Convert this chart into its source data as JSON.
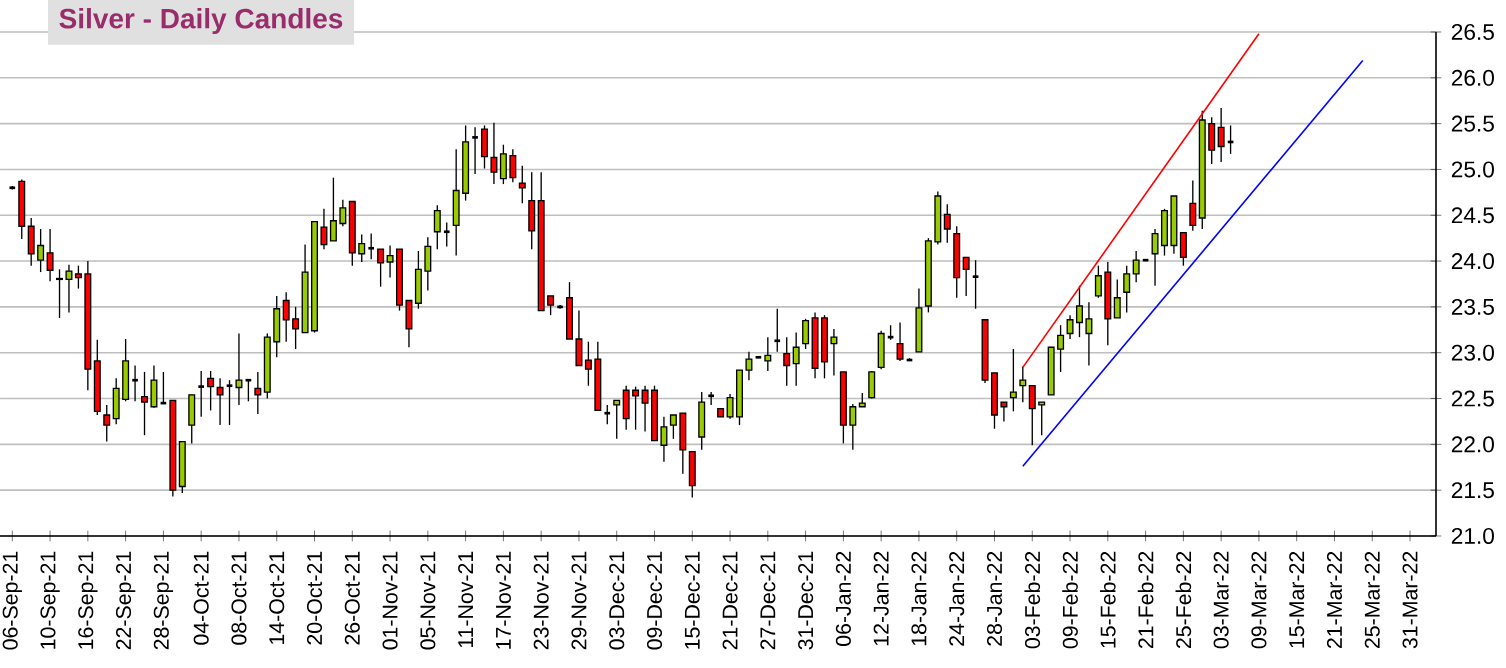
{
  "chart_data": {
    "type": "candlestick",
    "title": "Silver - Daily Candles",
    "categories": [
      "06-Sep-21",
      null,
      null,
      null,
      "10-Sep-21",
      null,
      null,
      null,
      "16-Sep-21",
      null,
      null,
      null,
      "22-Sep-21",
      null,
      null,
      null,
      "28-Sep-21",
      null,
      null,
      null,
      "04-Oct-21",
      null,
      null,
      null,
      "08-Oct-21",
      null,
      null,
      null,
      "14-Oct-21",
      null,
      null,
      null,
      "20-Oct-21",
      null,
      null,
      null,
      "26-Oct-21",
      null,
      null,
      null,
      "01-Nov-21",
      null,
      null,
      null,
      "05-Nov-21",
      null,
      null,
      null,
      "11-Nov-21",
      null,
      null,
      null,
      "17-Nov-21",
      null,
      null,
      null,
      "23-Nov-21",
      null,
      null,
      null,
      "29-Nov-21",
      null,
      null,
      null,
      "03-Dec-21",
      null,
      null,
      null,
      "09-Dec-21",
      null,
      null,
      null,
      "15-Dec-21",
      null,
      null,
      null,
      "21-Dec-21",
      null,
      null,
      null,
      "27-Dec-21",
      null,
      null,
      null,
      "31-Dec-21",
      null,
      null,
      null,
      "06-Jan-22",
      null,
      null,
      null,
      "12-Jan-22",
      null,
      null,
      null,
      "18-Jan-22",
      null,
      null,
      null,
      "24-Jan-22",
      null,
      null,
      null,
      "28-Jan-22",
      null,
      null,
      null,
      "03-Feb-22",
      null,
      null,
      null,
      "09-Feb-22",
      null,
      null,
      null,
      "15-Feb-22",
      null,
      null,
      null,
      "21-Feb-22",
      null,
      null,
      null,
      "25-Feb-22",
      null,
      null,
      null,
      "03-Mar-22",
      null,
      null,
      null,
      "09-Mar-22",
      null,
      null,
      null,
      "15-Mar-22",
      null,
      null,
      null,
      "21-Mar-22",
      null,
      null,
      null,
      "25-Mar-22",
      null,
      null,
      null,
      "31-Mar-22"
    ],
    "ohlc": [
      [
        24.8,
        24.82,
        24.78,
        24.8
      ],
      [
        24.87,
        24.89,
        24.24,
        24.38
      ],
      [
        24.38,
        24.47,
        23.95,
        24.08
      ],
      [
        24.01,
        24.35,
        23.88,
        24.17
      ],
      [
        24.09,
        24.35,
        23.78,
        23.9
      ],
      [
        23.8,
        23.91,
        23.38,
        23.81
      ],
      [
        23.8,
        23.96,
        23.44,
        23.89
      ],
      [
        23.86,
        23.95,
        23.7,
        23.82
      ],
      [
        23.86,
        24.0,
        22.59,
        22.82
      ],
      [
        22.91,
        23.14,
        22.32,
        22.36
      ],
      [
        22.32,
        22.43,
        22.03,
        22.21
      ],
      [
        22.28,
        22.72,
        22.22,
        22.61
      ],
      [
        22.49,
        23.15,
        22.47,
        22.91
      ],
      [
        22.7,
        22.86,
        22.47,
        22.7
      ],
      [
        22.52,
        22.79,
        22.1,
        22.46
      ],
      [
        22.41,
        22.86,
        22.4,
        22.7
      ],
      [
        22.45,
        22.79,
        22.44,
        22.45
      ],
      [
        22.48,
        22.48,
        21.43,
        21.5
      ],
      [
        21.54,
        22.03,
        21.47,
        22.03
      ],
      [
        22.21,
        22.54,
        22.01,
        22.54
      ],
      [
        22.63,
        22.8,
        22.3,
        22.63
      ],
      [
        22.72,
        22.8,
        22.37,
        22.63
      ],
      [
        22.62,
        22.72,
        22.21,
        22.54
      ],
      [
        22.64,
        22.7,
        22.21,
        22.64
      ],
      [
        22.62,
        23.21,
        22.43,
        22.7
      ],
      [
        22.7,
        22.7,
        22.47,
        22.7
      ],
      [
        22.61,
        22.79,
        22.33,
        22.54
      ],
      [
        22.57,
        23.21,
        22.5,
        23.17
      ],
      [
        23.12,
        23.62,
        22.95,
        23.48
      ],
      [
        23.57,
        23.66,
        23.12,
        23.36
      ],
      [
        23.37,
        23.5,
        23.04,
        23.26
      ],
      [
        23.22,
        24.18,
        23.22,
        23.88
      ],
      [
        23.24,
        24.43,
        23.22,
        24.43
      ],
      [
        24.37,
        24.57,
        24.13,
        24.18
      ],
      [
        24.22,
        24.91,
        24.22,
        24.44
      ],
      [
        24.41,
        24.67,
        24.38,
        24.58
      ],
      [
        24.65,
        24.65,
        23.95,
        24.09
      ],
      [
        24.08,
        24.29,
        23.99,
        24.19
      ],
      [
        24.14,
        24.3,
        24.02,
        24.14
      ],
      [
        24.13,
        24.13,
        23.72,
        23.98
      ],
      [
        23.99,
        24.17,
        23.82,
        24.06
      ],
      [
        24.13,
        24.13,
        23.46,
        23.52
      ],
      [
        23.57,
        23.57,
        23.06,
        23.26
      ],
      [
        23.54,
        24.11,
        23.48,
        23.91
      ],
      [
        23.89,
        24.26,
        23.68,
        24.16
      ],
      [
        24.32,
        24.61,
        24.13,
        24.55
      ],
      [
        24.32,
        24.42,
        24.16,
        24.32
      ],
      [
        24.39,
        25.22,
        24.06,
        24.77
      ],
      [
        24.74,
        25.48,
        24.66,
        25.3
      ],
      [
        25.35,
        25.46,
        24.95,
        25.35
      ],
      [
        25.44,
        25.48,
        25.01,
        25.14
      ],
      [
        25.13,
        25.51,
        24.84,
        24.97
      ],
      [
        24.9,
        25.27,
        24.84,
        25.17
      ],
      [
        25.15,
        25.22,
        24.86,
        24.91
      ],
      [
        24.85,
        25.04,
        24.63,
        24.8
      ],
      [
        24.66,
        24.97,
        24.13,
        24.33
      ],
      [
        24.66,
        24.97,
        23.46,
        23.46
      ],
      [
        23.62,
        23.62,
        23.41,
        23.52
      ],
      [
        23.5,
        23.52,
        23.48,
        23.5
      ],
      [
        23.6,
        23.77,
        23.15,
        23.15
      ],
      [
        23.15,
        23.46,
        22.86,
        22.86
      ],
      [
        22.92,
        23.12,
        22.64,
        22.82
      ],
      [
        22.93,
        23.12,
        22.37,
        22.37
      ],
      [
        22.34,
        22.43,
        22.22,
        22.34
      ],
      [
        22.43,
        22.48,
        22.06,
        22.48
      ],
      [
        22.59,
        22.64,
        22.16,
        22.28
      ],
      [
        22.59,
        22.63,
        22.16,
        22.53
      ],
      [
        22.59,
        22.64,
        22.14,
        22.45
      ],
      [
        22.59,
        22.64,
        22.04,
        22.04
      ],
      [
        21.99,
        22.3,
        21.81,
        22.19
      ],
      [
        22.21,
        22.32,
        22.06,
        22.32
      ],
      [
        22.34,
        22.34,
        21.68,
        21.94
      ],
      [
        21.92,
        21.92,
        21.42,
        21.55
      ],
      [
        22.08,
        22.57,
        21.94,
        22.46
      ],
      [
        22.53,
        22.57,
        22.43,
        22.53
      ],
      [
        22.39,
        22.39,
        22.3,
        22.3
      ],
      [
        22.3,
        22.55,
        22.28,
        22.51
      ],
      [
        22.3,
        22.81,
        22.21,
        22.81
      ],
      [
        22.81,
        23.01,
        22.7,
        22.93
      ],
      [
        22.95,
        22.96,
        22.94,
        22.95
      ],
      [
        22.91,
        23.17,
        22.8,
        22.97
      ],
      [
        23.13,
        23.48,
        23.01,
        23.13
      ],
      [
        22.99,
        23.17,
        22.64,
        22.86
      ],
      [
        22.88,
        23.22,
        22.64,
        23.06
      ],
      [
        23.1,
        23.37,
        23.04,
        23.35
      ],
      [
        23.38,
        23.44,
        22.72,
        22.83
      ],
      [
        23.38,
        23.41,
        22.72,
        22.9
      ],
      [
        23.1,
        23.26,
        22.75,
        23.17
      ],
      [
        22.79,
        22.79,
        22.01,
        22.21
      ],
      [
        22.21,
        22.44,
        21.94,
        22.41
      ],
      [
        22.41,
        22.56,
        22.41,
        22.45
      ],
      [
        22.51,
        22.8,
        22.5,
        22.79
      ],
      [
        22.84,
        23.24,
        22.82,
        23.21
      ],
      [
        23.17,
        23.3,
        23.14,
        23.17
      ],
      [
        23.1,
        23.33,
        22.91,
        22.93
      ],
      [
        22.92,
        22.94,
        22.91,
        22.92
      ],
      [
        23.01,
        23.7,
        23.01,
        23.49
      ],
      [
        23.51,
        24.25,
        23.44,
        24.22
      ],
      [
        24.21,
        24.76,
        24.18,
        24.71
      ],
      [
        24.51,
        24.62,
        24.2,
        24.35
      ],
      [
        24.3,
        24.38,
        23.6,
        23.82
      ],
      [
        24.04,
        24.04,
        23.62,
        23.91
      ],
      [
        23.83,
        24.01,
        23.48,
        23.83
      ],
      [
        23.36,
        23.36,
        22.67,
        22.7
      ],
      [
        22.78,
        22.78,
        22.17,
        22.32
      ],
      [
        22.46,
        22.46,
        22.25,
        22.41
      ],
      [
        22.51,
        23.04,
        22.36,
        22.57
      ],
      [
        22.64,
        22.85,
        22.46,
        22.7
      ],
      [
        22.64,
        22.64,
        21.99,
        22.39
      ],
      [
        22.43,
        22.46,
        22.1,
        22.46
      ],
      [
        22.54,
        23.06,
        22.54,
        23.06
      ],
      [
        23.04,
        23.3,
        22.79,
        23.19
      ],
      [
        23.21,
        23.41,
        23.15,
        23.36
      ],
      [
        23.33,
        23.73,
        23.17,
        23.51
      ],
      [
        23.21,
        23.55,
        22.86,
        23.37
      ],
      [
        23.62,
        23.95,
        23.6,
        23.84
      ],
      [
        23.88,
        23.99,
        23.08,
        23.37
      ],
      [
        23.38,
        23.8,
        23.38,
        23.6
      ],
      [
        23.66,
        23.95,
        23.44,
        23.86
      ],
      [
        23.86,
        24.11,
        23.77,
        24.01
      ],
      [
        24.01,
        24.02,
        24.0,
        24.01
      ],
      [
        24.08,
        24.35,
        23.73,
        24.3
      ],
      [
        24.17,
        24.57,
        24.06,
        24.55
      ],
      [
        24.17,
        24.71,
        24.08,
        24.71
      ],
      [
        24.31,
        24.31,
        23.95,
        24.04
      ],
      [
        24.63,
        24.88,
        24.33,
        24.39
      ],
      [
        24.47,
        25.64,
        24.35,
        25.54
      ],
      [
        25.5,
        25.57,
        25.06,
        25.21
      ],
      [
        25.46,
        25.67,
        25.08,
        25.25
      ],
      [
        25.3,
        25.48,
        25.17,
        25.3
      ],
      null,
      null,
      null,
      null,
      null,
      null,
      null,
      null,
      null,
      null,
      null,
      null,
      null,
      null,
      null,
      null,
      null,
      null,
      null
    ],
    "colors": [
      "#000000",
      "#ff0000",
      "#ff0000",
      "#99cc00",
      "#ff0000",
      "#99cc00",
      "#99cc00",
      "#ff0000",
      "#ff0000",
      "#ff0000",
      "#ff0000",
      "#99cc00",
      "#99cc00",
      "#000000",
      "#ff0000",
      "#99cc00",
      "#000000",
      "#ff0000",
      "#99cc00",
      "#99cc00",
      "#000000",
      "#ff0000",
      "#ff0000",
      "#000000",
      "#99cc00",
      "#000000",
      "#ff0000",
      "#99cc00",
      "#99cc00",
      "#ff0000",
      "#ff0000",
      "#99cc00",
      "#99cc00",
      "#ff0000",
      "#99cc00",
      "#99cc00",
      "#ff0000",
      "#99cc00",
      "#000000",
      "#ff0000",
      "#99cc00",
      "#ff0000",
      "#ff0000",
      "#99cc00",
      "#99cc00",
      "#99cc00",
      "#000000",
      "#99cc00",
      "#99cc00",
      "#000000",
      "#ff0000",
      "#ff0000",
      "#99cc00",
      "#ff0000",
      "#ff0000",
      "#ff0000",
      "#ff0000",
      "#ff0000",
      "#000000",
      "#ff0000",
      "#ff0000",
      "#ff0000",
      "#ff0000",
      "#000000",
      "#99cc00",
      "#ff0000",
      "#ff0000",
      "#ff0000",
      "#ff0000",
      "#99cc00",
      "#99cc00",
      "#ff0000",
      "#ff0000",
      "#99cc00",
      "#000000",
      "#ff0000",
      "#99cc00",
      "#99cc00",
      "#99cc00",
      "#000000",
      "#99cc00",
      "#000000",
      "#ff0000",
      "#99cc00",
      "#99cc00",
      "#ff0000",
      "#ff0000",
      "#99cc00",
      "#ff0000",
      "#99cc00",
      "#99cc00",
      "#99cc00",
      "#99cc00",
      "#000000",
      "#ff0000",
      "#000000",
      "#99cc00",
      "#99cc00",
      "#99cc00",
      "#ff0000",
      "#ff0000",
      "#ff0000",
      "#000000",
      "#ff0000",
      "#ff0000",
      "#ff0000",
      "#99cc00",
      "#99cc00",
      "#ff0000",
      "#99cc00",
      "#99cc00",
      "#99cc00",
      "#99cc00",
      "#99cc00",
      "#99cc00",
      "#99cc00",
      "#ff0000",
      "#99cc00",
      "#99cc00",
      "#99cc00",
      "#000000",
      "#99cc00",
      "#99cc00",
      "#99cc00",
      "#ff0000",
      "#ff0000",
      "#99cc00",
      "#ff0000",
      "#ff0000",
      "#000000",
      null,
      null,
      null,
      null,
      null,
      null,
      null,
      null,
      null,
      null,
      null,
      null,
      null,
      null,
      null,
      null,
      null,
      null,
      null
    ],
    "series": [
      {
        "type": "line",
        "color": "#ff0000",
        "values": [
          null,
          null,
          null,
          null,
          null,
          null,
          null,
          null,
          null,
          null,
          null,
          null,
          null,
          null,
          null,
          null,
          null,
          null,
          null,
          null,
          null,
          null,
          null,
          null,
          null,
          null,
          null,
          null,
          null,
          null,
          null,
          null,
          null,
          null,
          null,
          null,
          null,
          null,
          null,
          null,
          null,
          null,
          null,
          null,
          null,
          null,
          null,
          null,
          null,
          null,
          null,
          null,
          null,
          null,
          null,
          null,
          null,
          null,
          null,
          null,
          null,
          null,
          null,
          null,
          null,
          null,
          null,
          null,
          null,
          null,
          null,
          null,
          null,
          null,
          null,
          null,
          null,
          null,
          null,
          null,
          null,
          null,
          null,
          null,
          null,
          null,
          null,
          null,
          null,
          null,
          null,
          null,
          null,
          null,
          null,
          null,
          null,
          null,
          null,
          null,
          null,
          null,
          null,
          null,
          null,
          null,
          null,
          22.84,
          null,
          null,
          null,
          null,
          null,
          null,
          null,
          null,
          null,
          null,
          null,
          null,
          null,
          null,
          null,
          null,
          null,
          null,
          null,
          null,
          null,
          null,
          null,
          null,
          26.48,
          null,
          null,
          null,
          null,
          null,
          null,
          null,
          null,
          null,
          null,
          null,
          null,
          null,
          null,
          null,
          null
        ]
      },
      {
        "type": "line",
        "color": "#0000ff",
        "values": [
          null,
          null,
          null,
          null,
          null,
          null,
          null,
          null,
          null,
          null,
          null,
          null,
          null,
          null,
          null,
          null,
          null,
          null,
          null,
          null,
          null,
          null,
          null,
          null,
          null,
          null,
          null,
          null,
          null,
          null,
          null,
          null,
          null,
          null,
          null,
          null,
          null,
          null,
          null,
          null,
          null,
          null,
          null,
          null,
          null,
          null,
          null,
          null,
          null,
          null,
          null,
          null,
          null,
          null,
          null,
          null,
          null,
          null,
          null,
          null,
          null,
          null,
          null,
          null,
          null,
          null,
          null,
          null,
          null,
          null,
          null,
          null,
          null,
          null,
          null,
          null,
          null,
          null,
          null,
          null,
          null,
          null,
          null,
          null,
          null,
          null,
          null,
          null,
          null,
          null,
          null,
          null,
          null,
          null,
          null,
          null,
          null,
          null,
          null,
          null,
          null,
          null,
          null,
          null,
          null,
          null,
          null,
          21.76,
          null,
          null,
          null,
          null,
          null,
          null,
          null,
          null,
          null,
          null,
          null,
          null,
          null,
          null,
          null,
          null,
          null,
          null,
          null,
          null,
          null,
          null,
          null,
          null,
          null,
          null,
          null,
          null,
          null,
          null,
          null,
          null,
          null,
          null,
          null,
          26.19,
          null,
          null,
          null,
          null,
          null
        ]
      }
    ],
    "ylim": [
      21.0,
      26.5
    ],
    "yticks": [
      {
        "value": 21.0,
        "label": "21.0"
      },
      {
        "value": 21.5,
        "label": "21.5"
      },
      {
        "value": 22.0,
        "label": "22.0"
      },
      {
        "value": 22.5,
        "label": "22.5"
      },
      {
        "value": 23.0,
        "label": "23.0"
      },
      {
        "value": 23.5,
        "label": "23.5"
      },
      {
        "value": 24.0,
        "label": "24.0"
      },
      {
        "value": 24.5,
        "label": "24.5"
      },
      {
        "value": 25.0,
        "label": "25.0"
      },
      {
        "value": 25.5,
        "label": "25.5"
      },
      {
        "value": 26.0,
        "label": "26.0"
      },
      {
        "value": 26.5,
        "label": "26.5"
      }
    ],
    "grid": "y"
  }
}
